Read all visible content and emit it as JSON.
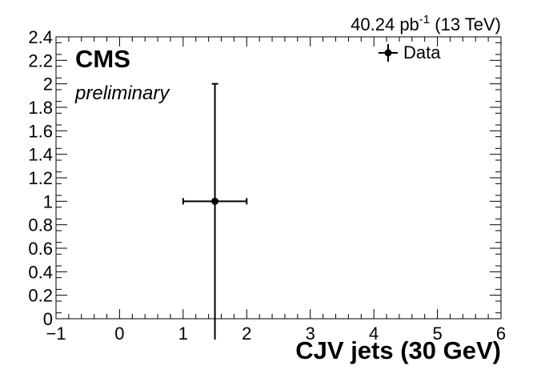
{
  "chart_data": {
    "type": "scatter",
    "title": "",
    "xlabel": "CJV jets (30 GeV)",
    "ylabel": "",
    "xlim": [
      -1,
      6
    ],
    "ylim": [
      0,
      2.4
    ],
    "x_ticks": [
      "−1",
      "0",
      "1",
      "2",
      "3",
      "4",
      "5",
      "6"
    ],
    "y_ticks": [
      "0",
      "0.2",
      "0.4",
      "0.6",
      "0.8",
      "1",
      "1.2",
      "1.4",
      "1.6",
      "1.8",
      "2",
      "2.2",
      "2.4"
    ],
    "series": [
      {
        "name": "Data",
        "points": [
          {
            "x": 1.5,
            "y": 1,
            "x_err": 0.5,
            "y_err_low": 1,
            "y_err_high": 1
          }
        ]
      }
    ],
    "legend": {
      "position": "top-right",
      "entries": [
        "Data"
      ]
    },
    "annotations": {
      "experiment": "CMS",
      "status": "preliminary",
      "lumi_value": "40.24 pb",
      "lumi_exponent": "-1",
      "energy": " (13 TeV)"
    }
  }
}
